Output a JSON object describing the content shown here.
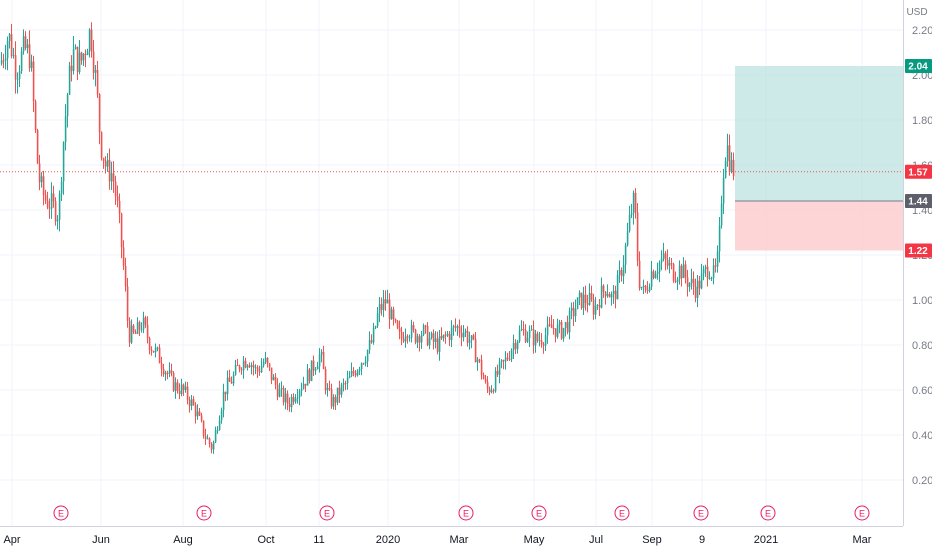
{
  "chart_data": {
    "type": "candlestick",
    "currency": "USD",
    "y_ticks": [
      "2.20",
      "2.00",
      "1.80",
      "1.60",
      "1.40",
      "1.20",
      "1.00",
      "0.80",
      "0.60",
      "0.40",
      "0.20"
    ],
    "ylim": [
      0.16,
      2.36
    ],
    "x_ticks": [
      "Apr",
      "Jun",
      "Aug",
      "Oct",
      "11",
      "2020",
      "Mar",
      "May",
      "Jul",
      "Sep",
      "9",
      "2021",
      "Mar"
    ],
    "price_tags": [
      {
        "label": "2.04",
        "value": 2.04,
        "color": "#089981"
      },
      {
        "label": "1.57",
        "value": 1.57,
        "color": "#f23645"
      },
      {
        "label": "1.44",
        "value": 1.44,
        "color": "#5d606b"
      },
      {
        "label": "1.22",
        "value": 1.22,
        "color": "#f23645"
      }
    ],
    "position": {
      "entry": 1.44,
      "target": 2.04,
      "stop": 1.22,
      "current": 1.57
    },
    "earnings_marker": "E",
    "earnings_count": 9,
    "colors": {
      "up": "#26a69a",
      "down": "#ef5350",
      "grid": "#f0f3fa",
      "profit_zone": "#b2dfdb",
      "loss_zone": "#fccbcd"
    },
    "price_path": [
      [
        0,
        2.05
      ],
      [
        8,
        2.18
      ],
      [
        16,
        2.02
      ],
      [
        24,
        2.12
      ],
      [
        30,
        2.08
      ],
      [
        34,
        1.8
      ],
      [
        38,
        1.55
      ],
      [
        44,
        1.45
      ],
      [
        52,
        1.42
      ],
      [
        58,
        1.38
      ],
      [
        62,
        1.65
      ],
      [
        66,
        1.88
      ],
      [
        72,
        2.1
      ],
      [
        80,
        2.05
      ],
      [
        86,
        2.14
      ],
      [
        90,
        2.2
      ],
      [
        96,
        1.95
      ],
      [
        100,
        1.7
      ],
      [
        106,
        1.58
      ],
      [
        112,
        1.56
      ],
      [
        118,
        1.38
      ],
      [
        124,
        1.1
      ],
      [
        128,
        0.85
      ],
      [
        134,
        0.84
      ],
      [
        142,
        0.9
      ],
      [
        150,
        0.8
      ],
      [
        158,
        0.75
      ],
      [
        166,
        0.68
      ],
      [
        174,
        0.62
      ],
      [
        182,
        0.6
      ],
      [
        190,
        0.55
      ],
      [
        196,
        0.5
      ],
      [
        204,
        0.4
      ],
      [
        212,
        0.34
      ],
      [
        218,
        0.48
      ],
      [
        224,
        0.6
      ],
      [
        232,
        0.65
      ],
      [
        240,
        0.72
      ],
      [
        248,
        0.74
      ],
      [
        256,
        0.68
      ],
      [
        264,
        0.73
      ],
      [
        272,
        0.65
      ],
      [
        280,
        0.58
      ],
      [
        288,
        0.54
      ],
      [
        296,
        0.6
      ],
      [
        304,
        0.64
      ],
      [
        312,
        0.7
      ],
      [
        320,
        0.76
      ],
      [
        326,
        0.6
      ],
      [
        332,
        0.54
      ],
      [
        340,
        0.6
      ],
      [
        348,
        0.64
      ],
      [
        356,
        0.7
      ],
      [
        364,
        0.75
      ],
      [
        372,
        0.82
      ],
      [
        378,
        0.95
      ],
      [
        386,
        1.0
      ],
      [
        392,
        0.9
      ],
      [
        400,
        0.82
      ],
      [
        406,
        0.88
      ],
      [
        414,
        0.84
      ],
      [
        422,
        0.86
      ],
      [
        430,
        0.82
      ],
      [
        438,
        0.8
      ],
      [
        446,
        0.84
      ],
      [
        456,
        0.88
      ],
      [
        464,
        0.86
      ],
      [
        472,
        0.8
      ],
      [
        480,
        0.7
      ],
      [
        486,
        0.6
      ],
      [
        492,
        0.62
      ],
      [
        498,
        0.68
      ],
      [
        504,
        0.72
      ],
      [
        512,
        0.8
      ],
      [
        520,
        0.86
      ],
      [
        528,
        0.85
      ],
      [
        536,
        0.82
      ],
      [
        544,
        0.84
      ],
      [
        552,
        0.88
      ],
      [
        560,
        0.86
      ],
      [
        568,
        0.9
      ],
      [
        574,
        0.96
      ],
      [
        580,
        1.0
      ],
      [
        588,
        1.0
      ],
      [
        594,
        0.96
      ],
      [
        600,
        1.02
      ],
      [
        606,
        1.06
      ],
      [
        612,
        1.0
      ],
      [
        618,
        1.08
      ],
      [
        624,
        1.2
      ],
      [
        630,
        1.38
      ],
      [
        634,
        1.45
      ],
      [
        638,
        1.1
      ],
      [
        644,
        1.02
      ],
      [
        650,
        1.12
      ],
      [
        656,
        1.15
      ],
      [
        662,
        1.18
      ],
      [
        668,
        1.15
      ],
      [
        674,
        1.12
      ],
      [
        680,
        1.14
      ],
      [
        688,
        1.08
      ],
      [
        696,
        1.05
      ],
      [
        702,
        1.1
      ],
      [
        708,
        1.15
      ],
      [
        714,
        1.1
      ],
      [
        718,
        1.2
      ],
      [
        722,
        1.55
      ],
      [
        726,
        1.7
      ],
      [
        730,
        1.6
      ],
      [
        734,
        1.57
      ]
    ]
  }
}
